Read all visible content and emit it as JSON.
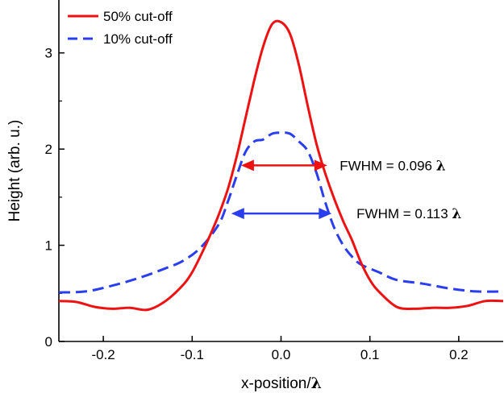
{
  "chart_data": {
    "type": "line",
    "xlabel_text": "x-position/",
    "xlabel_symbol": "λ",
    "ylabel": "Height (arb. u.)",
    "xlim": [
      -0.25,
      0.25
    ],
    "ylim": [
      0,
      3.4
    ],
    "x_ticks": [
      -0.2,
      -0.1,
      0.0,
      0.1,
      0.2
    ],
    "x_tick_labels": [
      "-0.2",
      "-0.1",
      "0.0",
      "0.1",
      "0.2"
    ],
    "y_ticks": [
      0,
      1,
      2,
      3
    ],
    "y_tick_labels": [
      "0",
      "1",
      "2",
      "3"
    ],
    "grid": false,
    "legend_position": "top-left",
    "series": [
      {
        "name": "50% cut-off",
        "color": "#ee1111",
        "style": "solid",
        "x": [
          -0.25,
          -0.23,
          -0.21,
          -0.19,
          -0.17,
          -0.15,
          -0.13,
          -0.11,
          -0.1,
          -0.09,
          -0.08,
          -0.07,
          -0.06,
          -0.05,
          -0.04,
          -0.03,
          -0.02,
          -0.01,
          0.0,
          0.01,
          0.02,
          0.03,
          0.04,
          0.05,
          0.06,
          0.07,
          0.08,
          0.09,
          0.1,
          0.11,
          0.13,
          0.15,
          0.17,
          0.19,
          0.21,
          0.23,
          0.25
        ],
        "y": [
          0.42,
          0.41,
          0.36,
          0.34,
          0.35,
          0.33,
          0.42,
          0.59,
          0.72,
          0.9,
          1.1,
          1.32,
          1.58,
          1.92,
          2.32,
          2.72,
          3.07,
          3.3,
          3.32,
          3.2,
          2.88,
          2.45,
          2.05,
          1.74,
          1.48,
          1.25,
          1.05,
          0.82,
          0.64,
          0.52,
          0.36,
          0.34,
          0.35,
          0.35,
          0.37,
          0.42,
          0.42
        ]
      },
      {
        "name": "10% cut-off",
        "color": "#2a3df0",
        "style": "dashed",
        "x": [
          -0.25,
          -0.22,
          -0.19,
          -0.16,
          -0.13,
          -0.11,
          -0.09,
          -0.07,
          -0.06,
          -0.05,
          -0.04,
          -0.03,
          -0.02,
          -0.01,
          0.0,
          0.01,
          0.02,
          0.03,
          0.04,
          0.05,
          0.06,
          0.07,
          0.08,
          0.09,
          0.11,
          0.13,
          0.16,
          0.19,
          0.22,
          0.25
        ],
        "y": [
          0.51,
          0.52,
          0.58,
          0.66,
          0.76,
          0.84,
          0.98,
          1.22,
          1.45,
          1.72,
          1.97,
          2.08,
          2.1,
          2.16,
          2.17,
          2.16,
          2.08,
          1.98,
          1.75,
          1.44,
          1.18,
          1.0,
          0.88,
          0.8,
          0.72,
          0.64,
          0.6,
          0.55,
          0.52,
          0.52
        ]
      }
    ],
    "annotations": [
      {
        "text": "FWHM = 0.096",
        "symbol": "λ",
        "color": "#ee1111",
        "x1": -0.045,
        "x2": 0.052,
        "y": 1.83,
        "label_x": 0.066,
        "label_y": 1.83
      },
      {
        "text": "FWHM = 0.113",
        "symbol": "λ",
        "color": "#2a3df0",
        "x1": -0.056,
        "x2": 0.057,
        "y": 1.33,
        "label_x": 0.085,
        "label_y": 1.33
      }
    ]
  }
}
